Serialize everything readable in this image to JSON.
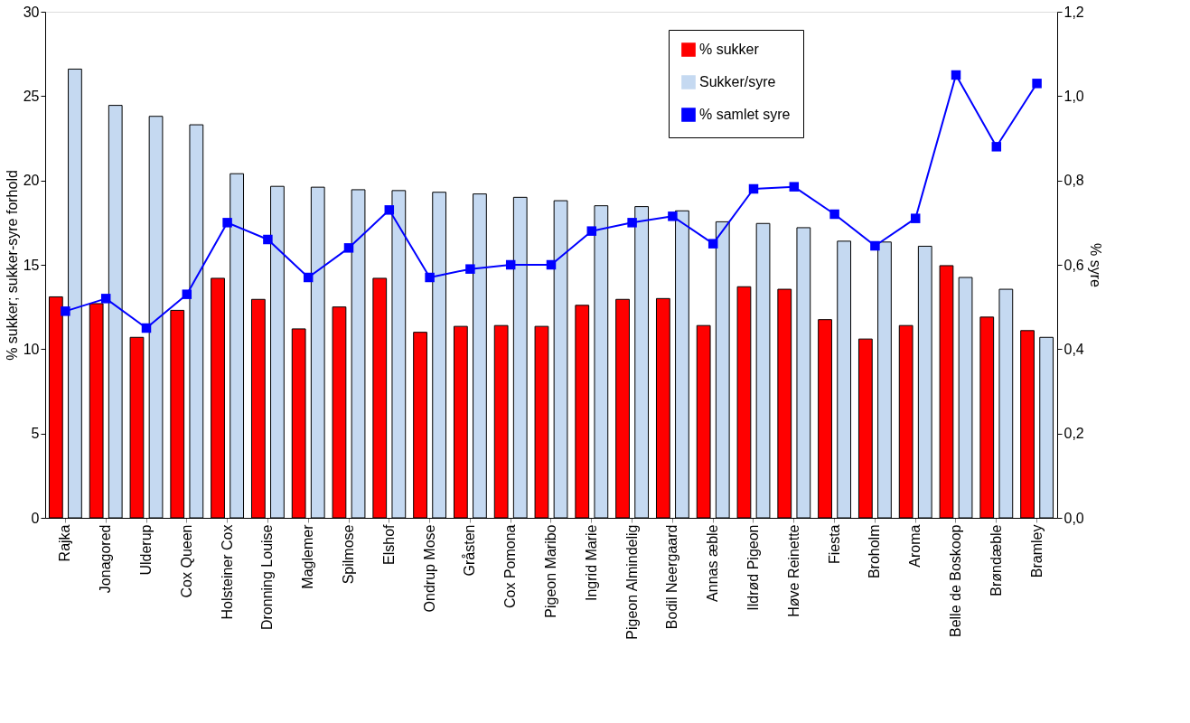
{
  "chart_data": {
    "type": "bar",
    "ylabel": "% sukker; sukker-syre forhold",
    "y2label": "% syre",
    "categories": [
      "Rajka",
      "Jonagored",
      "Ulderup",
      "Cox Queen",
      "Holsteiner Cox",
      "Dronning Louise",
      "Maglemer",
      "Spilmose",
      "Elshof",
      "Ondrup Mose",
      "Gråsten",
      "Cox Pomona",
      "Pigeon Maribo",
      "Ingrid Marie",
      "Pigeon Almindelig",
      "Bodil Neergaard",
      "Annas æble",
      "Ildrød Pigeon",
      "Høve Reinette",
      "Fiesta",
      "Broholm",
      "Aroma",
      "Belle de Boskoop",
      "Brøndæble",
      "Bramley"
    ],
    "series": [
      {
        "name": "% sukker",
        "color": "#ff0000",
        "type": "bar",
        "values": [
          13.1,
          12.7,
          10.7,
          12.3,
          14.2,
          12.95,
          11.2,
          12.5,
          14.2,
          11.0,
          11.35,
          11.4,
          11.35,
          12.6,
          12.95,
          13.0,
          11.4,
          13.7,
          13.55,
          11.75,
          10.6,
          11.4,
          14.95,
          11.9,
          11.1
        ]
      },
      {
        "name": "Sukker/syre",
        "color": "#c5d9f1",
        "type": "bar",
        "values": [
          26.6,
          24.45,
          23.8,
          23.3,
          20.4,
          19.65,
          19.6,
          19.45,
          19.4,
          19.3,
          19.2,
          19.0,
          18.8,
          18.5,
          18.45,
          18.2,
          17.55,
          17.45,
          17.2,
          16.4,
          16.35,
          16.1,
          14.25,
          13.55,
          10.7
        ]
      },
      {
        "name": "% samlet syre",
        "color": "#0000ff",
        "type": "line",
        "axis": "y2",
        "marker": "square",
        "values": [
          0.49,
          0.52,
          0.45,
          0.53,
          0.7,
          0.66,
          0.57,
          0.64,
          0.73,
          0.57,
          0.59,
          0.6,
          0.6,
          0.68,
          0.7,
          0.715,
          0.65,
          0.78,
          0.785,
          0.72,
          0.645,
          0.71,
          1.05,
          0.88,
          1.03
        ]
      }
    ],
    "ylim": [
      0,
      30
    ],
    "yticks": [
      0,
      5,
      10,
      15,
      20,
      25,
      30
    ],
    "y2lim": [
      0,
      1.2
    ],
    "y2ticks": [
      {
        "value": 0,
        "label": "0,0"
      },
      {
        "value": 0.2,
        "label": "0,2"
      },
      {
        "value": 0.4,
        "label": "0,4"
      },
      {
        "value": 0.6,
        "label": "0,6"
      },
      {
        "value": 0.8,
        "label": "0,8"
      },
      {
        "value": 1.0,
        "label": "1,0"
      },
      {
        "value": 1.2,
        "label": "1,2"
      }
    ],
    "grid": false,
    "legend": "top right"
  }
}
